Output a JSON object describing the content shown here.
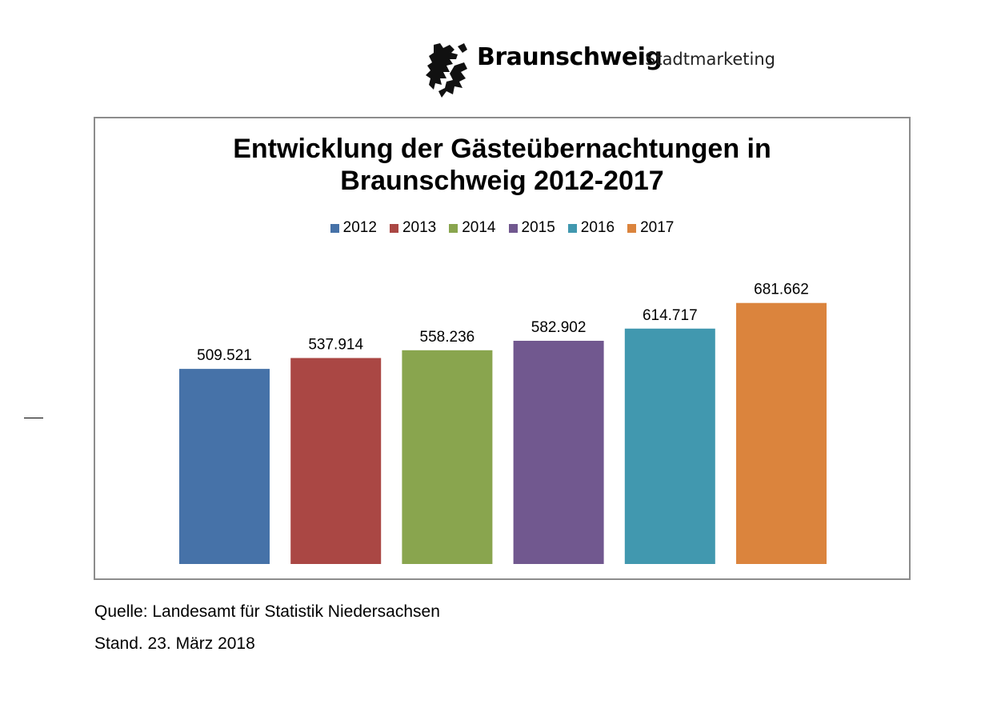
{
  "header": {
    "brand": "Braunschweig",
    "subtitle": "Stadtmarketing"
  },
  "footer": {
    "source": "Quelle: Landesamt für Statistik Niedersachsen",
    "stand": "Stand. 23. März 2018"
  },
  "chart_data": {
    "type": "bar",
    "title_lines": [
      "Entwicklung der Gästeübernachtungen in",
      "Braunschweig 2012-2017"
    ],
    "categories": [
      "2012",
      "2013",
      "2014",
      "2015",
      "2016",
      "2017"
    ],
    "values": [
      509521,
      537914,
      558236,
      582902,
      614717,
      681662
    ],
    "value_labels": [
      "509.521",
      "537.914",
      "558.236",
      "582.902",
      "614.717",
      "681.662"
    ],
    "colors": [
      "#4672A8",
      "#AA4744",
      "#89A54E",
      "#71588F",
      "#4198AF",
      "#DB843D"
    ],
    "legend": [
      "2012",
      "2013",
      "2014",
      "2015",
      "2016",
      "2017"
    ],
    "legend_position": "top",
    "ylim": [
      0,
      750000
    ],
    "grid": false,
    "axes_visible": false
  }
}
